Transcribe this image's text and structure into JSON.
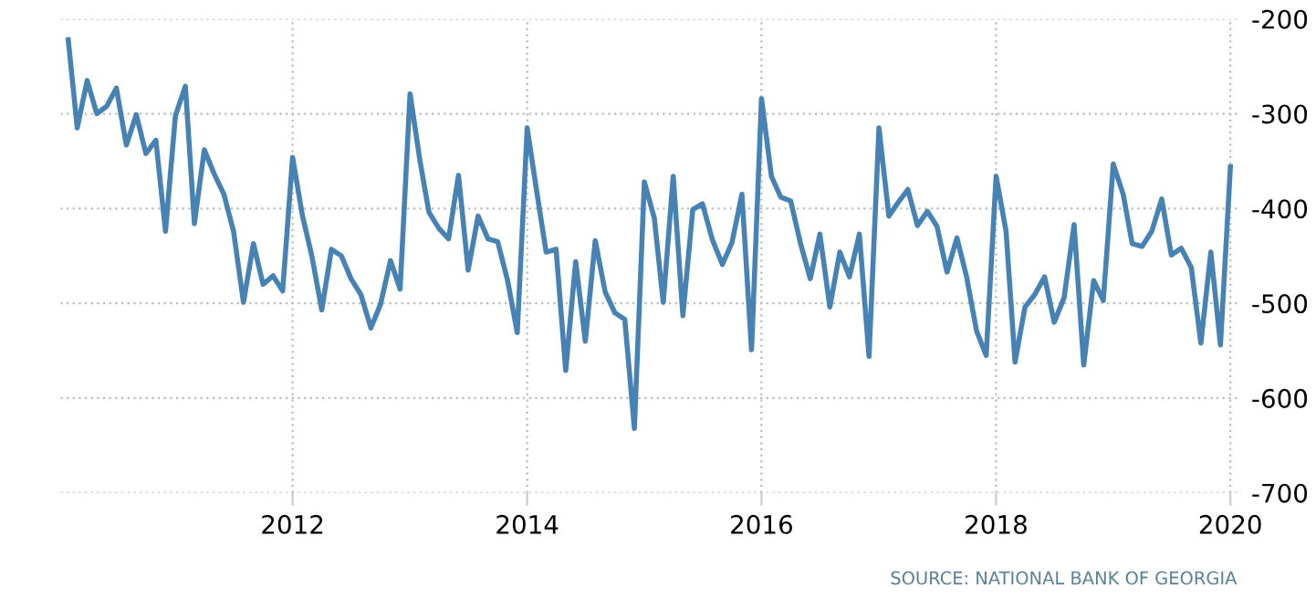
{
  "chart_data": {
    "type": "line",
    "x": [
      "2010-02",
      "2010-03",
      "2010-04",
      "2010-05",
      "2010-06",
      "2010-07",
      "2010-08",
      "2010-09",
      "2010-10",
      "2010-11",
      "2010-12",
      "2011-01",
      "2011-02",
      "2011-03",
      "2011-04",
      "2011-05",
      "2011-06",
      "2011-07",
      "2011-08",
      "2011-09",
      "2011-10",
      "2011-11",
      "2011-12",
      "2012-01",
      "2012-02",
      "2012-03",
      "2012-04",
      "2012-05",
      "2012-06",
      "2012-07",
      "2012-08",
      "2012-09",
      "2012-10",
      "2012-11",
      "2012-12",
      "2013-01",
      "2013-02",
      "2013-03",
      "2013-04",
      "2013-05",
      "2013-06",
      "2013-07",
      "2013-08",
      "2013-09",
      "2013-10",
      "2013-11",
      "2013-12",
      "2014-01",
      "2014-02",
      "2014-03",
      "2014-04",
      "2014-05",
      "2014-06",
      "2014-07",
      "2014-08",
      "2014-09",
      "2014-10",
      "2014-11",
      "2014-12",
      "2015-01",
      "2015-02",
      "2015-03",
      "2015-04",
      "2015-05",
      "2015-06",
      "2015-07",
      "2015-08",
      "2015-09",
      "2015-10",
      "2015-11",
      "2015-12",
      "2016-01",
      "2016-02",
      "2016-03",
      "2016-04",
      "2016-05",
      "2016-06",
      "2016-07",
      "2016-08",
      "2016-09",
      "2016-10",
      "2016-11",
      "2016-12",
      "2017-01",
      "2017-02",
      "2017-03",
      "2017-04",
      "2017-05",
      "2017-06",
      "2017-07",
      "2017-08",
      "2017-09",
      "2017-10",
      "2017-11",
      "2017-12",
      "2018-01",
      "2018-02",
      "2018-03",
      "2018-04",
      "2018-05",
      "2018-06",
      "2018-07",
      "2018-08",
      "2018-09",
      "2018-10",
      "2018-11",
      "2018-12",
      "2019-01",
      "2019-02",
      "2019-03",
      "2019-04",
      "2019-05",
      "2019-06",
      "2019-07",
      "2019-08",
      "2019-09",
      "2019-10",
      "2019-11",
      "2019-12",
      "2020-01"
    ],
    "series": [
      {
        "color": "#4682b4",
        "values": [
          -222,
          -315,
          -265,
          -300,
          -292,
          -273,
          -333,
          -301,
          -342,
          -328,
          -424,
          -302,
          -271,
          -416,
          -338,
          -363,
          -385,
          -424,
          -499,
          -437,
          -480,
          -471,
          -487,
          -346,
          -408,
          -450,
          -507,
          -443,
          -450,
          -474,
          -491,
          -526,
          -501,
          -455,
          -485,
          -279,
          -350,
          -404,
          -421,
          -432,
          -365,
          -465,
          -408,
          -432,
          -435,
          -476,
          -531,
          -315,
          -385,
          -446,
          -443,
          -571,
          -456,
          -540,
          -434,
          -488,
          -510,
          -517,
          -632,
          -372,
          -410,
          -499,
          -366,
          -513,
          -401,
          -395,
          -433,
          -459,
          -436,
          -385,
          -549,
          -284,
          -366,
          -388,
          -392,
          -436,
          -474,
          -427,
          -504,
          -446,
          -472,
          -427,
          -556,
          -315,
          -408,
          -394,
          -380,
          -418,
          -403,
          -419,
          -467,
          -431,
          -472,
          -529,
          -555,
          -366,
          -424,
          -562,
          -504,
          -491,
          -472,
          -520,
          -494,
          -417,
          -565,
          -476,
          -497,
          -353,
          -385,
          -437,
          -440,
          -424,
          -390,
          -449,
          -442,
          -462,
          -542,
          -446,
          -544,
          -356
        ]
      }
    ],
    "ylim": [
      -700,
      -200
    ],
    "yticks": [
      -700,
      -600,
      -500,
      -400,
      -300,
      -200
    ],
    "xlim": [
      "2010-01-08",
      "2020-02-03"
    ],
    "xticks": [
      {
        "value": "2012-01-01",
        "label": "2012"
      },
      {
        "value": "2014-01-01",
        "label": "2014"
      },
      {
        "value": "2016-01-01",
        "label": "2016"
      },
      {
        "value": "2018-01-01",
        "label": "2018"
      },
      {
        "value": "2020-01-01",
        "label": "2020"
      }
    ],
    "grid": true,
    "line_style": "solid",
    "annotations": [
      "SOURCE: NATIONAL BANK OF GEORGIA"
    ]
  }
}
